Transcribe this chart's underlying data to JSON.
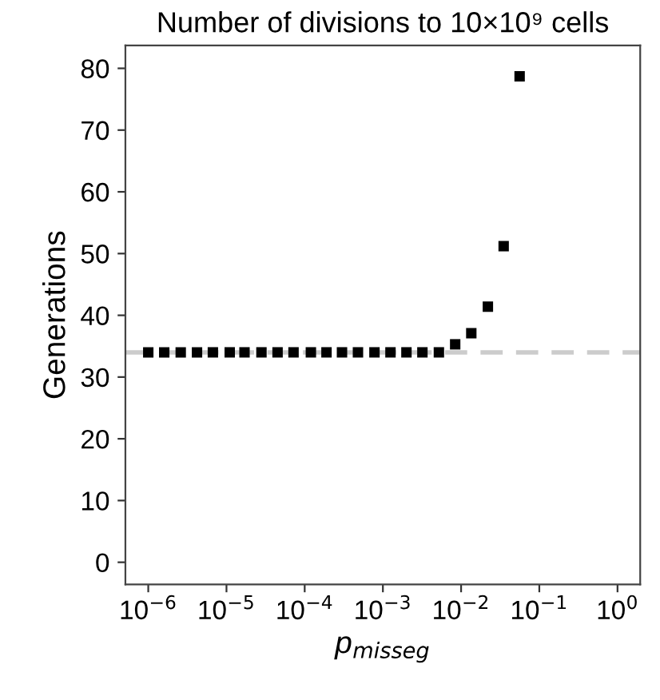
{
  "chart_data": {
    "type": "scatter",
    "title": "Number of divisions to 10×10⁹ cells",
    "xlabel": "p$_{misseg}$",
    "ylabel": "Generations",
    "log": "x",
    "x": [
      1e-06,
      1.6e-06,
      2.6e-06,
      4.2e-06,
      6.7e-06,
      1.1e-05,
      1.7e-05,
      2.8e-05,
      4.5e-05,
      7.2e-05,
      0.00012,
      0.00019,
      0.0003,
      0.00048,
      0.00078,
      0.00125,
      0.002,
      0.0032,
      0.0052,
      0.0084,
      0.0135,
      0.022,
      0.035,
      0.056
    ],
    "series": [
      {
        "color": "#000000",
        "values": [
          34,
          34,
          34,
          34,
          34,
          34,
          34,
          34,
          34,
          34,
          34,
          34,
          34,
          34,
          34,
          34,
          34,
          34,
          34,
          35.3,
          37.1,
          41.4,
          51.2,
          78.7
        ]
      }
    ],
    "marker": "square",
    "grid": false,
    "legend": false,
    "xlim": [
      5.1e-07,
      1.95
    ],
    "ylim": [
      -3.6,
      83.7
    ],
    "xticks": [
      {
        "value": 1e-06,
        "label": "10$^{−6}$"
      },
      {
        "value": 1e-05,
        "label": "10$^{−5}$"
      },
      {
        "value": 0.0001,
        "label": "10$^{−4}$"
      },
      {
        "value": 0.001,
        "label": "10$^{−3}$"
      },
      {
        "value": 0.01,
        "label": "10$^{−2}$"
      },
      {
        "value": 0.1,
        "label": "10$^{−1}$"
      },
      {
        "value": 1,
        "label": "10$^{0}$"
      }
    ],
    "yticks": [
      0,
      10,
      20,
      30,
      40,
      50,
      60,
      70,
      80
    ],
    "ref_lines": [
      {
        "axis": "y",
        "value": 34,
        "color": "#cccccc",
        "line_style": "dashed"
      }
    ]
  }
}
